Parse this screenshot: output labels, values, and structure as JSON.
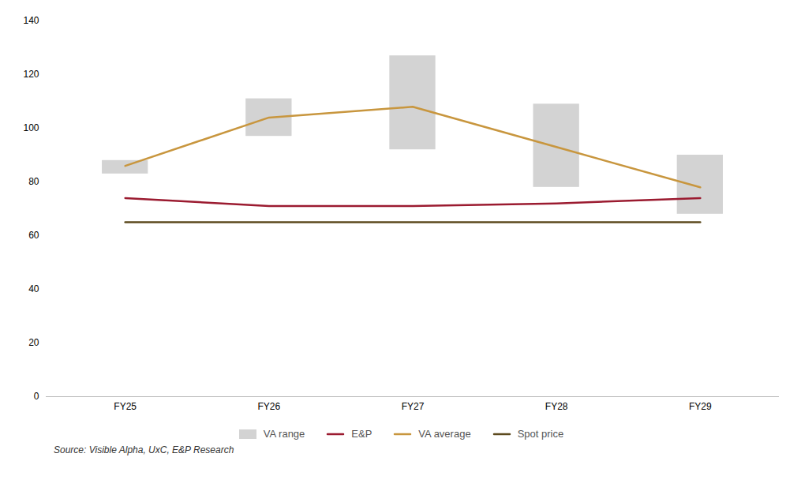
{
  "chart_data": {
    "type": "line",
    "categories": [
      "FY25",
      "FY26",
      "FY27",
      "FY28",
      "FY29"
    ],
    "series": [
      {
        "name": "VA range",
        "type": "range",
        "color": "#D3D3D3",
        "low": [
          83,
          97,
          92,
          78,
          68
        ],
        "high": [
          88,
          111,
          127,
          109,
          90
        ]
      },
      {
        "name": "E&P",
        "color": "#9B1B30",
        "values": [
          74,
          71,
          71,
          72,
          74
        ]
      },
      {
        "name": "VA average",
        "color": "#C8963E",
        "values": [
          86,
          104,
          108,
          93,
          78
        ]
      },
      {
        "name": "Spot price",
        "color": "#5C4A1E",
        "values": [
          65,
          65,
          65,
          65,
          65
        ]
      }
    ],
    "ylim": [
      0,
      140
    ],
    "yticks": [
      0,
      20,
      40,
      60,
      80,
      100,
      120,
      140
    ],
    "grid": false,
    "legend": "bottom",
    "caption": "Source: Visible Alpha, UxC, E&P Research"
  }
}
